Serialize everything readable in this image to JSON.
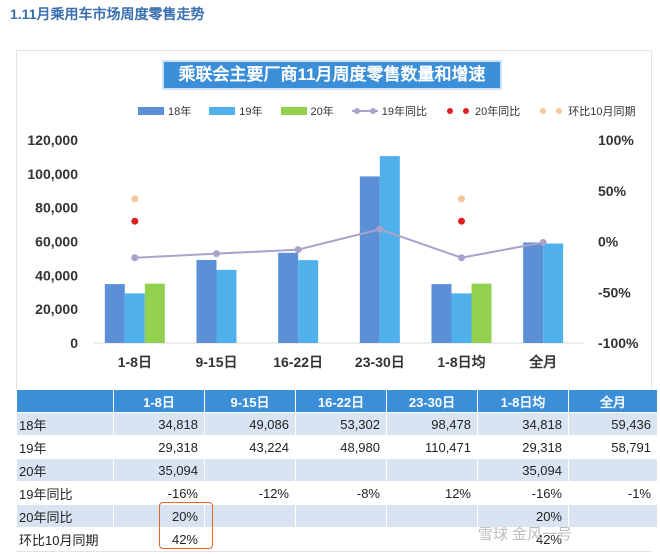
{
  "heading": "1.11月乘用车市场周度零售走势",
  "watermark": "雪球 金风一号",
  "colors": {
    "s18": "#5b8fd6",
    "s19": "#4fb0ec",
    "s20": "#92d050",
    "yoy19": "#a9a2cc",
    "yoy20": "#e02020",
    "mom": "#f7c69b",
    "title_bg": "#3b8fd9"
  },
  "chart_data": {
    "type": "bar",
    "title": "乘联会主要厂商11月周度零售数量和增速",
    "categories": [
      "1-8日",
      "9-15日",
      "16-22日",
      "23-30日",
      "1-8日均",
      "全月"
    ],
    "series": [
      {
        "name": "18年",
        "values": [
          34818,
          49086,
          53302,
          98478,
          34818,
          59436
        ]
      },
      {
        "name": "19年",
        "values": [
          29318,
          43224,
          48980,
          110471,
          29318,
          58791
        ]
      },
      {
        "name": "20年",
        "values": [
          35094,
          null,
          null,
          null,
          35094,
          null
        ]
      }
    ],
    "line_series": [
      {
        "name": "19年同比",
        "values": [
          -16,
          -12,
          -8,
          12,
          -16,
          -1
        ]
      },
      {
        "name": "20年同比",
        "values": [
          20,
          null,
          null,
          null,
          20,
          null
        ]
      },
      {
        "name": "环比10月同期",
        "values": [
          42,
          null,
          null,
          null,
          42,
          null
        ]
      }
    ],
    "ylim": [
      0,
      120000
    ],
    "yticks": [
      "0",
      "20,000",
      "40,000",
      "60,000",
      "80,000",
      "100,000",
      "120,000"
    ],
    "y2lim": [
      -100,
      100
    ],
    "y2ticks": [
      "-100%",
      "-50%",
      "0%",
      "50%",
      "100%"
    ],
    "legend_position": "top"
  },
  "table": {
    "headers": [
      "",
      "1-8日",
      "9-15日",
      "16-22日",
      "23-30日",
      "1-8日均",
      "全月"
    ],
    "rows": [
      {
        "label": "18年",
        "cells": [
          "34,818",
          "49,086",
          "53,302",
          "98,478",
          "34,818",
          "59,436"
        ]
      },
      {
        "label": "19年",
        "cells": [
          "29,318",
          "43,224",
          "48,980",
          "110,471",
          "29,318",
          "58,791"
        ]
      },
      {
        "label": "20年",
        "cells": [
          "35,094",
          "",
          "",
          "",
          "35,094",
          ""
        ]
      },
      {
        "label": "19年同比",
        "cells": [
          "-16%",
          "-12%",
          "-8%",
          "12%",
          "-16%",
          "-1%"
        ]
      },
      {
        "label": "20年同比",
        "cells": [
          "20%",
          "",
          "",
          "",
          "20%",
          ""
        ]
      },
      {
        "label": "环比10月同期",
        "cells": [
          "42%",
          "",
          "",
          "",
          "42%",
          ""
        ]
      }
    ]
  }
}
